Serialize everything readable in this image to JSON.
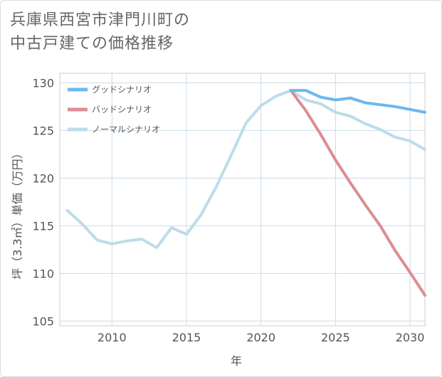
{
  "title_line1": "兵庫県西宮市津門川町の",
  "title_line2": "中古戸建ての価格推移",
  "chart_data": {
    "type": "line",
    "xlabel": "年",
    "ylabel": "坪（3.3㎡）単価（万円）",
    "xlim": [
      2006.5,
      2031
    ],
    "ylim": [
      104.5,
      131
    ],
    "xticks": [
      2010,
      2015,
      2020,
      2025,
      2030
    ],
    "yticks": [
      105,
      110,
      115,
      120,
      125,
      130
    ],
    "legend_position": "top-left",
    "grid": true,
    "series": [
      {
        "name": "グッドシナリオ",
        "color": "#6cb8ef",
        "x": [
          2022,
          2023,
          2024,
          2025,
          2026,
          2027,
          2028,
          2029,
          2030,
          2031
        ],
        "values": [
          129.2,
          129.2,
          128.5,
          128.2,
          128.4,
          127.9,
          127.7,
          127.5,
          127.2,
          126.9
        ]
      },
      {
        "name": "バッドシナリオ",
        "color": "#dd8d94",
        "x": [
          2022,
          2023,
          2024,
          2025,
          2026,
          2027,
          2028,
          2029,
          2030,
          2031
        ],
        "values": [
          129.2,
          127.1,
          124.6,
          121.9,
          119.5,
          117.2,
          115.0,
          112.4,
          110.1,
          107.7
        ]
      },
      {
        "name": "ノーマルシナリオ",
        "color": "#bcdcea",
        "x": [
          2007,
          2008,
          2009,
          2010,
          2011,
          2012,
          2013,
          2014,
          2015,
          2016,
          2017,
          2018,
          2019,
          2020,
          2021,
          2022,
          2023,
          2024,
          2025,
          2026,
          2027,
          2028,
          2029,
          2030,
          2031
        ],
        "values": [
          116.6,
          115.2,
          113.5,
          113.1,
          113.4,
          113.6,
          112.7,
          114.8,
          114.1,
          116.2,
          119.1,
          122.4,
          125.8,
          127.6,
          128.6,
          129.2,
          128.2,
          127.8,
          126.9,
          126.5,
          125.7,
          125.1,
          124.3,
          123.9,
          123.0
        ]
      }
    ]
  }
}
